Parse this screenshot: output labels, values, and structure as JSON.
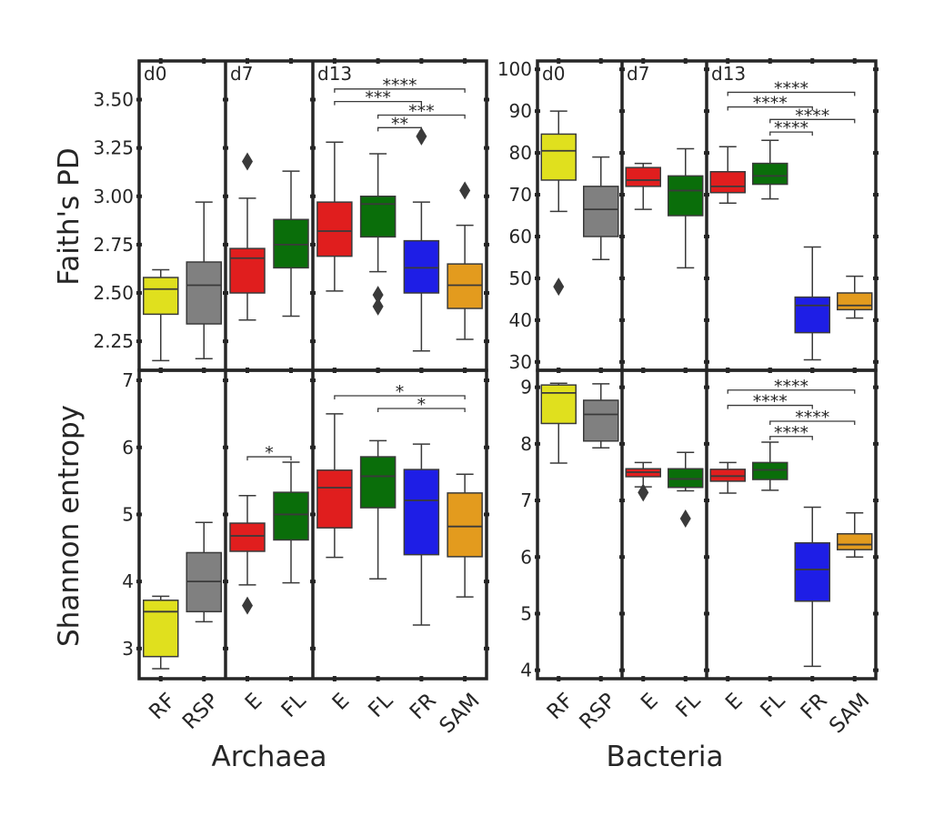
{
  "figure": {
    "row_labels": [
      "Faith's PD",
      "Shannon entropy"
    ],
    "column_labels": [
      "Archaea",
      "Bacteria"
    ],
    "categories": [
      "RF",
      "RSP",
      "E",
      "FL",
      "E",
      "FL",
      "FR",
      "SAM"
    ],
    "groups": [
      {
        "label": "d0",
        "start": 0,
        "count": 2
      },
      {
        "label": "d7",
        "start": 2,
        "count": 2
      },
      {
        "label": "d13",
        "start": 4,
        "count": 4
      }
    ]
  },
  "colors": {
    "RF": "#e0e01e",
    "RSP": "#808080",
    "E": "#e01e1e",
    "FL": "#0a6e0a",
    "FR": "#1e1ee6",
    "SAM": "#e39b1e",
    "line": "#3a3a3a",
    "frame": "#262626"
  },
  "chart_data": [
    {
      "type": "box",
      "panel": "archaea-faiths-pd",
      "title": "",
      "xlabel": "",
      "ylabel": "Faith's PD",
      "ylim": [
        2.1,
        3.7
      ],
      "yticks": [
        "2.25",
        "2.50",
        "2.75",
        "3.00",
        "3.25",
        "3.50"
      ],
      "boxes": [
        {
          "category": "RF",
          "min": 2.15,
          "q1": 2.39,
          "median": 2.52,
          "q3": 2.58,
          "max": 2.62,
          "outliers": []
        },
        {
          "category": "RSP",
          "min": 2.16,
          "q1": 2.34,
          "median": 2.54,
          "q3": 2.66,
          "max": 2.97,
          "outliers": []
        },
        {
          "category": "E",
          "min": 2.36,
          "q1": 2.5,
          "median": 2.68,
          "q3": 2.73,
          "max": 2.99,
          "outliers": [
            3.18
          ]
        },
        {
          "category": "FL",
          "min": 2.38,
          "q1": 2.63,
          "median": 2.75,
          "q3": 2.88,
          "max": 3.13,
          "outliers": []
        },
        {
          "category": "E",
          "min": 2.51,
          "q1": 2.69,
          "median": 2.82,
          "q3": 2.97,
          "max": 3.28,
          "outliers": []
        },
        {
          "category": "FL",
          "min": 2.61,
          "q1": 2.79,
          "median": 2.96,
          "q3": 3.0,
          "max": 3.22,
          "outliers": [
            2.49,
            2.43
          ]
        },
        {
          "category": "FR",
          "min": 2.2,
          "q1": 2.5,
          "median": 2.63,
          "q3": 2.77,
          "max": 2.97,
          "outliers": [
            3.31
          ]
        },
        {
          "category": "SAM",
          "min": 2.26,
          "q1": 2.42,
          "median": 2.54,
          "q3": 2.65,
          "max": 2.85,
          "outliers": [
            3.03
          ]
        }
      ],
      "significance": [
        {
          "from": 4,
          "to": 7,
          "label": "****",
          "y": 3.555
        },
        {
          "from": 4,
          "to": 6,
          "label": "***",
          "y": 3.49
        },
        {
          "from": 5,
          "to": 7,
          "label": "***",
          "y": 3.42
        },
        {
          "from": 5,
          "to": 6,
          "label": "**",
          "y": 3.355
        }
      ]
    },
    {
      "type": "box",
      "panel": "bacteria-faiths-pd",
      "title": "",
      "xlabel": "",
      "ylabel": "",
      "ylim": [
        28,
        102
      ],
      "yticks": [
        "30",
        "40",
        "50",
        "60",
        "70",
        "80",
        "90",
        "100"
      ],
      "boxes": [
        {
          "category": "RF",
          "min": 66,
          "q1": 73.5,
          "median": 80.5,
          "q3": 84.5,
          "max": 90,
          "outliers": [
            48
          ]
        },
        {
          "category": "RSP",
          "min": 54.5,
          "q1": 60,
          "median": 66.5,
          "q3": 72,
          "max": 79,
          "outliers": []
        },
        {
          "category": "E",
          "min": 66.5,
          "q1": 72,
          "median": 73.5,
          "q3": 76.5,
          "max": 77.5,
          "outliers": []
        },
        {
          "category": "FL",
          "min": 52.5,
          "q1": 65,
          "median": 71,
          "q3": 74.5,
          "max": 81,
          "outliers": []
        },
        {
          "category": "E",
          "min": 68,
          "q1": 70.5,
          "median": 72,
          "q3": 75.5,
          "max": 81.5,
          "outliers": []
        },
        {
          "category": "FL",
          "min": 69,
          "q1": 72.5,
          "median": 74.5,
          "q3": 77.5,
          "max": 83,
          "outliers": []
        },
        {
          "category": "FR",
          "min": 30.5,
          "q1": 37,
          "median": 43.5,
          "q3": 45.5,
          "max": 57.5,
          "outliers": []
        },
        {
          "category": "SAM",
          "min": 40.5,
          "q1": 42.5,
          "median": 43.5,
          "q3": 46.5,
          "max": 50.5,
          "outliers": []
        }
      ],
      "significance": [
        {
          "from": 4,
          "to": 7,
          "label": "****",
          "y": 94.5
        },
        {
          "from": 4,
          "to": 6,
          "label": "****",
          "y": 91
        },
        {
          "from": 5,
          "to": 7,
          "label": "****",
          "y": 88
        },
        {
          "from": 5,
          "to": 6,
          "label": "****",
          "y": 85
        }
      ]
    },
    {
      "type": "box",
      "panel": "archaea-shannon-entropy",
      "title": "",
      "xlabel": "Archaea",
      "ylabel": "Shannon entropy",
      "ylim": [
        2.55,
        7.15
      ],
      "yticks": [
        "3",
        "4",
        "5",
        "6",
        "7"
      ],
      "boxes": [
        {
          "category": "RF",
          "min": 2.7,
          "q1": 2.88,
          "median": 3.55,
          "q3": 3.72,
          "max": 3.78,
          "outliers": []
        },
        {
          "category": "RSP",
          "min": 3.4,
          "q1": 3.55,
          "median": 4.0,
          "q3": 4.43,
          "max": 4.88,
          "outliers": []
        },
        {
          "category": "E",
          "min": 3.95,
          "q1": 4.45,
          "median": 4.68,
          "q3": 4.87,
          "max": 5.28,
          "outliers": [
            3.64
          ]
        },
        {
          "category": "FL",
          "min": 3.98,
          "q1": 4.62,
          "median": 5.0,
          "q3": 5.33,
          "max": 5.78,
          "outliers": []
        },
        {
          "category": "E",
          "min": 4.36,
          "q1": 4.8,
          "median": 5.4,
          "q3": 5.66,
          "max": 6.5,
          "outliers": []
        },
        {
          "category": "FL",
          "min": 4.04,
          "q1": 5.1,
          "median": 5.57,
          "q3": 5.86,
          "max": 6.1,
          "outliers": []
        },
        {
          "category": "FR",
          "min": 3.35,
          "q1": 4.4,
          "median": 5.21,
          "q3": 5.67,
          "max": 6.05,
          "outliers": []
        },
        {
          "category": "SAM",
          "min": 3.77,
          "q1": 4.37,
          "median": 4.82,
          "q3": 5.32,
          "max": 5.6,
          "outliers": []
        }
      ],
      "significance": [
        {
          "from": 4,
          "to": 7,
          "label": "*",
          "y": 6.77
        },
        {
          "from": 5,
          "to": 7,
          "label": "*",
          "y": 6.58
        },
        {
          "from": 2,
          "to": 3,
          "label": "*",
          "y": 5.86
        }
      ]
    },
    {
      "type": "box",
      "panel": "bacteria-shannon-entropy",
      "title": "",
      "xlabel": "Bacteria",
      "ylabel": "",
      "ylim": [
        3.85,
        9.3
      ],
      "yticks": [
        "4",
        "5",
        "6",
        "7",
        "8",
        "9"
      ],
      "boxes": [
        {
          "category": "RF",
          "min": 7.66,
          "q1": 8.36,
          "median": 8.9,
          "q3": 9.04,
          "max": 9.07,
          "outliers": []
        },
        {
          "category": "RSP",
          "min": 7.93,
          "q1": 8.05,
          "median": 8.52,
          "q3": 8.77,
          "max": 9.06,
          "outliers": []
        },
        {
          "category": "E",
          "min": 7.24,
          "q1": 7.42,
          "median": 7.5,
          "q3": 7.56,
          "max": 7.67,
          "outliers": [
            7.14
          ]
        },
        {
          "category": "FL",
          "min": 7.17,
          "q1": 7.23,
          "median": 7.38,
          "q3": 7.56,
          "max": 7.85,
          "outliers": [
            6.68
          ]
        },
        {
          "category": "E",
          "min": 7.13,
          "q1": 7.34,
          "median": 7.43,
          "q3": 7.55,
          "max": 7.67,
          "outliers": []
        },
        {
          "category": "FL",
          "min": 7.18,
          "q1": 7.37,
          "median": 7.54,
          "q3": 7.67,
          "max": 8.03,
          "outliers": []
        },
        {
          "category": "FR",
          "min": 4.07,
          "q1": 5.22,
          "median": 5.78,
          "q3": 6.25,
          "max": 6.88,
          "outliers": []
        },
        {
          "category": "SAM",
          "min": 6.0,
          "q1": 6.13,
          "median": 6.22,
          "q3": 6.41,
          "max": 6.78,
          "outliers": []
        }
      ],
      "significance": [
        {
          "from": 4,
          "to": 7,
          "label": "****",
          "y": 8.95
        },
        {
          "from": 4,
          "to": 6,
          "label": "****",
          "y": 8.68
        },
        {
          "from": 5,
          "to": 7,
          "label": "****",
          "y": 8.4
        },
        {
          "from": 5,
          "to": 6,
          "label": "****",
          "y": 8.13
        }
      ]
    }
  ]
}
